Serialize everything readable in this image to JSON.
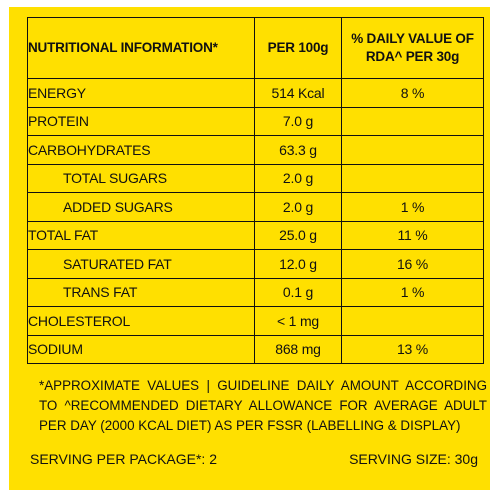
{
  "header": {
    "col1": "NUTRITIONAL INFORMATION*",
    "col2": "PER 100g",
    "col3_line1": "% DAILY VALUE OF",
    "col3_line2": "RDA^ PER 30g"
  },
  "rows": [
    {
      "name": "ENERGY",
      "per100g": "514 Kcal",
      "daily": "8 %"
    },
    {
      "name": "PROTEIN",
      "per100g": "7.0 g",
      "daily": ""
    },
    {
      "name": "CARBOHYDRATES",
      "per100g": "63.3 g",
      "daily": ""
    },
    {
      "name": "TOTAL SUGARS",
      "per100g": "2.0 g",
      "daily": ""
    },
    {
      "name": "ADDED SUGARS",
      "per100g": "2.0 g",
      "daily": "1 %"
    },
    {
      "name": "TOTAL FAT",
      "per100g": "25.0 g",
      "daily": "11 %"
    },
    {
      "name": "SATURATED FAT",
      "per100g": "12.0 g",
      "daily": "16 %"
    },
    {
      "name": "TRANS FAT",
      "per100g": "0.1 g",
      "daily": "1 %"
    },
    {
      "name": "CHOLESTEROL",
      "per100g": "< 1 mg",
      "daily": ""
    },
    {
      "name": "SODIUM",
      "per100g": "868 mg",
      "daily": "13 %"
    }
  ],
  "footnote": "*APPROXIMATE VALUES | GUIDELINE DAILY AMOUNT ACCORDING TO ^RECOMMENDED DIETARY ALLOWANCE FOR AVERAGE ADULT PER DAY (2000 KCAL DIET) AS PER FSSR (LABELLING & DISPLAY)",
  "serving": {
    "per_package": "SERVING PER PACKAGE*: 2",
    "size": "SERVING SIZE: 30g"
  },
  "colors": {
    "label_background": "#ffe000",
    "text": "#111111"
  }
}
